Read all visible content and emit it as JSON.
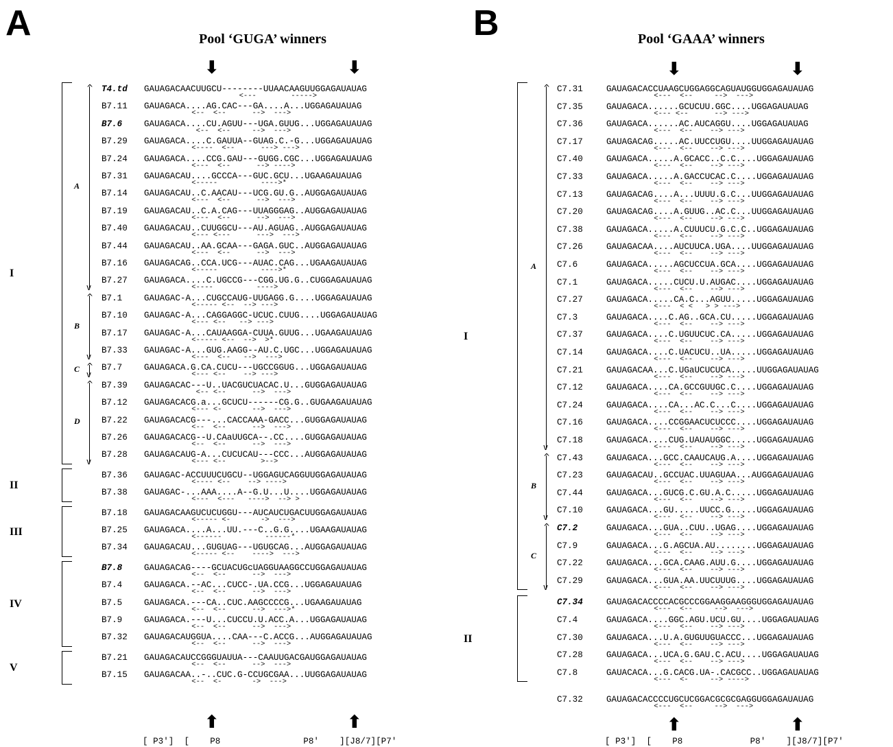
{
  "panelA": {
    "letter": "A",
    "title": "Pool ‘GUGA’ winners",
    "groups": [
      {
        "roman": "I",
        "sub": [
          {
            "letter": "A",
            "rows": [
              {
                "label": "T4.td",
                "style": "bolditalic",
                "seq": "GAUAGACAACUUGCU--------UUAACAAGUUGGAGAUAUAG",
                "ss": "                      <---        ----->"
              },
              {
                "label": "B7.11",
                "seq": "GAUAGACA....AG.CAC---GA....A...UGGAGAUAUAG",
                "ss": "           <--  <--      -->  --->"
              },
              {
                "label": "B7.6",
                "style": "bolditalic",
                "seq": "GAUAGACA....CU.AGUU---UGA.GUUG...UGGAGAUAUAG",
                "ss": "            <--  <--     -->  --->"
              },
              {
                "label": "B7.29",
                "seq": "GAUAGACA....C.GAUUA--GUAG.C.-G...UGGAGAUAUAG",
                "ss": "           <----  <--      ---> --->"
              },
              {
                "label": "B7.24",
                "seq": "GAUAGACA....CCG.GAU---GUGG.CGC...UGGAGAUAUAG",
                "ss": "           <---  <--      --> ---->"
              },
              {
                "label": "B7.31",
                "seq": "GAUAGACAU....GCCCA---GUC.GCU...UGAAGAUAUAG",
                "ss": "           <-----          ---->*"
              },
              {
                "label": "B7.14",
                "seq": "GAUAGACAU..C.AACAU---UCG.GU.G..AUGGAGAUAUAG",
                "ss": "           <---  <--      -->  --->"
              },
              {
                "label": "B7.19",
                "seq": "GAUAGACAU..C.A.CAG---UUAGGGAG..AUGGAGAUAUAG",
                "ss": "           <---  <--      -->  --->"
              },
              {
                "label": "B7.40",
                "seq": "GAUAGACAU..CUUGGCU---AU.AGUAG..AUGGAGAUAUAG",
                "ss": "           <--- <---      --->  --->"
              },
              {
                "label": "B7.44",
                "seq": "GAUAGACAU..AA.GCAA---GAGA.GUC..AUGGAGAUAUAG",
                "ss": "           <---  <--      -->  --->"
              },
              {
                "label": "B7.16",
                "seq": "GAUAGACAG..CCA.UCG---AUAC.CAG...UGAAGAUAUAG",
                "ss": "           <-----          ---->*"
              },
              {
                "label": "B7.27",
                "seq": "GAUAGACA....C.UGCCG---CGG.UG.G..CUGGAGAUAUAG",
                "ss": "           <----          ---->"
              }
            ]
          },
          {
            "letter": "B",
            "rows": [
              {
                "label": "B7.1",
                "seq": "GAUAGAC-A...CUGCCAUG-UUGAGG.G....UGGAGAUAUAG",
                "ss": "           <----- <--  --> --->"
              },
              {
                "label": "B7.10",
                "seq": "GAUAGAC-A...CAGGAGGC-UCUC.CUUG....UGGAGAUAUAG",
                "ss": "           <--- <--   --> --->"
              },
              {
                "label": "B7.17",
                "seq": "GAUAGAC-A...CAUAAGGA-CUUA.GUUG...UGAAGAUAUAG",
                "ss": "           <----- <--  -->  >*"
              },
              {
                "label": "B7.33",
                "seq": "GAUAGAC-A...GUG.AAGG--AU.C.UGC...UGGAGAUAUAG",
                "ss": "           <---  <--   -->  --->"
              }
            ]
          },
          {
            "letter": "C",
            "rows": [
              {
                "label": "B7.7",
                "seq": "GAUAGACA.G.CA.CUCU---UGCCGGUG...UGGAGAUAUAG",
                "ss": "           <--- <--    --> --->"
              }
            ]
          },
          {
            "letter": "D",
            "rows": [
              {
                "label": "B7.39",
                "seq": "GAUAGACAC---U..UACGUCUACAC.U...GUGGAGAUAUAG",
                "ss": "            <-- <--      -->  --->"
              },
              {
                "label": "B7.12",
                "seq": "GAUAGACACG.a...GCUCU------CG.G..GUGAAGAUAUAG",
                "ss": "           <--- <-       -->  --->"
              },
              {
                "label": "B7.22",
                "seq": "GAUAGACACG---...CACCAAA-GACC...GUGGAGAUAUAG",
                "ss": "           <--  <--      -->  --->"
              },
              {
                "label": "B7.26",
                "seq": "GAUAGACACG--U.CAaUUGCA--.CC....GUGGAGAUAUAG",
                "ss": "           <--  <--      -->  --->"
              },
              {
                "label": "B7.28",
                "seq": "GAUAGACAUG-A...CUCUCAU---CCC...AUGGAGAUAUAG",
                "ss": "           <--- <--        >-->"
              }
            ]
          }
        ]
      },
      {
        "roman": "II",
        "sub": [
          {
            "letter": "",
            "rows": [
              {
                "label": "B7.36",
                "seq": "GAUAGAC-ACCUUUCUGCU--UGGAGUCAGGUUGGAGAUAUAG",
                "ss": "           <---- <--    --> ---->"
              },
              {
                "label": "B7.38",
                "seq": "GAUAGAC-...AAA....A--G.U...U....UGGAGAUAUAG",
                "ss": "           <---  <---   ---->  --> >"
              }
            ]
          }
        ]
      },
      {
        "roman": "III",
        "sub": [
          {
            "letter": "",
            "rows": [
              {
                "label": "B7.18",
                "seq": "GAUAGACAAGUCUCUGGU---AUCAUCUGACUUGGAGAUAUAG",
                "ss": "           <----- <-       ->  --->"
              },
              {
                "label": "B7.25",
                "seq": "GAUAGACA....A...UU.---C..G.G....UGAAGAUAUAG",
                "ss": "           <------          ------*"
              },
              {
                "label": "B7.34",
                "seq": "GAUAGACAU...GUGUAG---UGUGCAG...AUGGAGAUAUAG",
                "ss": "           <----- <--    ---->  --->"
              }
            ]
          }
        ]
      },
      {
        "roman": "IV",
        "sub": [
          {
            "letter": "",
            "rows": [
              {
                "label": "B7.8",
                "style": "bolditalic",
                "seq": "GAUAGACAG----GCUACUGcUAGGUAAGGCCUGGAGAUAUAG",
                "ss": "           <--  <--      -->  --->"
              },
              {
                "label": "B7.4",
                "seq": "GAUAGACA.--AC...CUCC-.UA.CCG...UGGAGAUAUAG",
                "ss": "           <--  <--      -->  --->"
              },
              {
                "label": "B7.5",
                "seq": "GAUAGACA.---CA..CUC.AAGCCCCG...UGAAGAUAUAG",
                "ss": "           <--  <--      -->  --->*"
              },
              {
                "label": "B7.9",
                "seq": "GAUAGACA.---U...CUCCU.U.ACC.A...UGGAGAUAUAG",
                "ss": "           <--  <--      -->  --->"
              },
              {
                "label": "B7.32",
                "seq": "GAUAGACAUGGUA....CAA---C.ACCG...AUGGAGAUAUAG",
                "ss": "           <--  <--      -->  --->"
              }
            ]
          }
        ]
      },
      {
        "roman": "V",
        "sub": [
          {
            "letter": "",
            "rows": [
              {
                "label": "B7.21",
                "seq": "GAUAGACAUCCGGGUAUUA---CAAUUGACGAUGGAGAUAUAG",
                "ss": "           <--  <--      -->  --->"
              },
              {
                "label": "B7.15",
                "seq": "GAUAGACAA..-..CUC.G-CCUGCGAA...UUGGAGAUAUAG",
                "ss": "           <--  <-       ->  --->"
              }
            ]
          }
        ]
      }
    ],
    "footer": "[ P3']  [    P8                P8'    ][J8/7][P7'"
  },
  "panelB": {
    "letter": "B",
    "title": "Pool ‘GAAA’ winners",
    "groups": [
      {
        "roman": "I",
        "sub": [
          {
            "letter": "A",
            "rows": [
              {
                "label": "C7.31",
                "seq": "GAUAGACACCUAAGCUGGAGGCAGUAUGGUGGAGAUAUAG",
                "ss": "           <---  <--     -->  --->"
              },
              {
                "label": "C7.35",
                "seq": "GAUAGACA......GCUCUU.GGC....UGGAGAUAUAG",
                "ss": "           <--- <--      --> --->"
              },
              {
                "label": "C7.36",
                "seq": "GAUAGACA......AC.AUCAGGU....UGGAGAUAUAG",
                "ss": "           <---  <--    --> --->"
              },
              {
                "label": "C7.17",
                "seq": "GAUAGACAG.....AC.UUCCUGU....UUGGAGAUAUAG",
                "ss": "           <---  <--    --> --->"
              },
              {
                "label": "C7.40",
                "seq": "GAUAGACA.....A.GCACC..C.C....UGGAGAUAUAG",
                "ss": "           <---  <--    --> --->"
              },
              {
                "label": "C7.33",
                "seq": "GAUAGACA.....A.GACCUCAC.C....UGGAGAUAUAG",
                "ss": "           <---  <--    --> --->"
              },
              {
                "label": "C7.13",
                "seq": "GAUAGACAG....A...UUUU.G.C...UUGGAGAUAUAG",
                "ss": "           <---  <--    --> --->"
              },
              {
                "label": "C7.20",
                "seq": "GAUAGACAG....A.GUUG..AC.C...UUGGAGAUAUAG",
                "ss": "           <---  <--    --> --->"
              },
              {
                "label": "C7.38",
                "seq": "GAUAGACA.....A.CUUUCU.G.C.C..UGGAGAUAUAG",
                "ss": "           <---  <--    --> --->"
              },
              {
                "label": "C7.26",
                "seq": "GAUAGACAA....AUCUUCA.UGA....UUGGAGAUAUAG",
                "ss": "           <---  <--    --> --->"
              },
              {
                "label": "C7.6",
                "seq": "GAUAGACA.....AGCUCCUA.GCA....UGGAGAUAUAG",
                "ss": "           <---  <--    --> --->"
              },
              {
                "label": "C7.1",
                "seq": "GAUAGACA.....CUCU.U.AUGAC....UGGAGAUAUAG",
                "ss": "           <---  <--    --> --->"
              },
              {
                "label": "C7.27",
                "seq": "GAUAGACA.....CA.C...AGUU.....UGGAGAUAUAG",
                "ss": "           <---  < <   > > --->"
              },
              {
                "label": "C7.3",
                "seq": "GAUAGACA....C.AG..GCA.CU.....UGGAGAUAUAG",
                "ss": "           <---  <--    --> --->"
              },
              {
                "label": "C7.37",
                "seq": "GAUAGACA....C.UGUUCUC.CA.....UGGAGAUAUAG",
                "ss": "           <---  <--    --> --->"
              },
              {
                "label": "C7.14",
                "seq": "GAUAGACA....C.UACUCU..UA.....UGGAGAUAUAG",
                "ss": "           <---  <--    --> --->"
              },
              {
                "label": "C7.21",
                "seq": "GAUAGACAA...C.UGaUCUCUCA.....UUGGAGAUAUAG",
                "ss": "           <---  <--    --> --->"
              },
              {
                "label": "C7.12",
                "seq": "GAUAGACA....CA.GCCGUUGC.C....UGGAGAUAUAG",
                "ss": "           <---  <--    --> --->"
              },
              {
                "label": "C7.24",
                "seq": "GAUAGACA....CA...AC.C...C....UGGAGAUAUAG",
                "ss": "           <---  <--    --> --->"
              },
              {
                "label": "C7.16",
                "seq": "GAUAGACA....CCGGAACUCUCCC....UGGAGAUAUAG",
                "ss": "           <---  <--    --> --->"
              },
              {
                "label": "C7.18",
                "seq": "GAUAGACA....CUG.UAUAUGGC.....UGGAGAUAUAG",
                "ss": "           <---  <--    --> --->"
              }
            ]
          },
          {
            "letter": "B",
            "rows": [
              {
                "label": "C7.43",
                "seq": "GAUAGACA...GCC.CAAUCAUG.A....UGGAGAUAUAG",
                "ss": "           <---  <--    --> --->"
              },
              {
                "label": "C7.23",
                "seq": "GAUAGACAU..GCCUAC.UUAGUAA...AUGGAGAUAUAG",
                "ss": "           <---  <--    --> --->"
              },
              {
                "label": "C7.44",
                "seq": "GAUAGACA...GUCG.C.GU.A.C.....UGGAGAUAUAG",
                "ss": "           <---  <--    --> --->"
              },
              {
                "label": "C7.10",
                "seq": "GAUAGACA...GU.....UUCC.G.....UGGAGAUAUAG",
                "ss": "           <---  <--    --> --->"
              }
            ]
          },
          {
            "letter": "C",
            "rows": [
              {
                "label": "C7.2",
                "style": "bolditalic",
                "seq": "GAUAGACA...GUA..CUU..UGAG....UGGAGAUAUAG",
                "ss": "           <---  <--    --> --->"
              },
              {
                "label": "C7.9",
                "seq": "GAUAGACA...G.AGCUA.AU........UGGAGAUAUAG",
                "ss": "           <---  <--    --> --->"
              },
              {
                "label": "C7.22",
                "seq": "GAUAGACA...GCA.CAAG.AUU.G....UGGAGAUAUAG",
                "ss": "           <---  <--    --> --->"
              },
              {
                "label": "C7.29",
                "seq": "GAUAGACA...GUA.AA.UUCUUUG....UGGAGAUAUAG",
                "ss": "           <---  <--    --> --->"
              }
            ]
          }
        ]
      },
      {
        "roman": "II",
        "sub": [
          {
            "letter": "",
            "rows": [
              {
                "label": "C7.34",
                "style": "bolditalic",
                "seq": "GAUAGACACCCCACGCCCGGAAGGAAGGGUGGAGAUAUAG",
                "ss": "           <---  <--     -->  --->"
              },
              {
                "label": "C7.4",
                "seq": "GAUAGACA....GGC.AGU.UCU.GU....UGGAGAUAUAG",
                "ss": "           <---  <--    --> --->"
              },
              {
                "label": "C7.30",
                "seq": "GAUAGACA...U.A.GUGUUGUACCC...UGGAGAUAUAG",
                "ss": "           <---  <--    --> --->"
              },
              {
                "label": "C7.28",
                "seq": "GAUAGACA...UCA.G.GAU.C.ACU....UGGAGAUAUAG",
                "ss": "           <---  <--    --> --->"
              },
              {
                "label": "C7.8",
                "seq": "GAUACACA...G.CACG.UA-.CACGCC..UGGAGAUAUAG",
                "ss": "           <---  <-     --> ---->"
              }
            ]
          }
        ]
      }
    ],
    "extra": {
      "label": "C7.32",
      "seq": "GAUAGACACCCCUGCUCGGACGCGCGAGGUGGAGAUAUAG",
      "ss": "           <---  <--     -->  --->"
    },
    "footer": "[ P3']  [    P8             P8'    ][J8/7][P7'"
  }
}
